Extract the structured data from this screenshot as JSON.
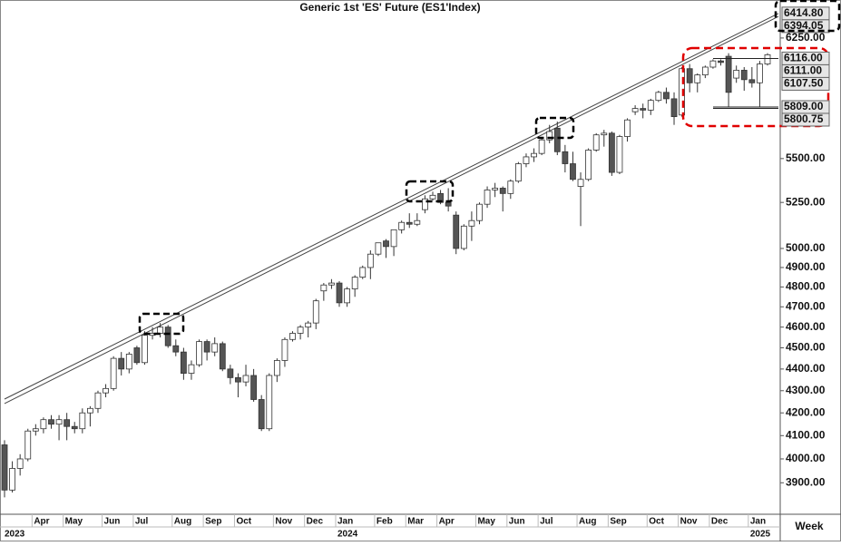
{
  "chart_data": {
    "type": "candlestick",
    "title": "Generic 1st 'ES' Future (ES1'Index)",
    "x_label": "Week",
    "log_scale": true,
    "ylim": [
      3772,
      6507
    ],
    "yticks": [
      {
        "value": 3900,
        "label": "3900.00"
      },
      {
        "value": 4000,
        "label": "4000.00"
      },
      {
        "value": 4100,
        "label": "4100.00"
      },
      {
        "value": 4200,
        "label": "4200.00"
      },
      {
        "value": 4300,
        "label": "4300.00"
      },
      {
        "value": 4400,
        "label": "4400.00"
      },
      {
        "value": 4500,
        "label": "4500.00"
      },
      {
        "value": 4600,
        "label": "4600.00"
      },
      {
        "value": 4700,
        "label": "4700.00"
      },
      {
        "value": 4800,
        "label": "4800.00"
      },
      {
        "value": 4900,
        "label": "4900.00"
      },
      {
        "value": 5000,
        "label": "5000.00"
      },
      {
        "value": 5250,
        "label": "5250.00"
      },
      {
        "value": 5500,
        "label": "5500.00"
      },
      {
        "value": 6250,
        "label": "6250.00"
      }
    ],
    "year_labels": [
      "2023",
      "2024",
      "2025"
    ],
    "categories": [
      null,
      null,
      null,
      null,
      "Apr",
      null,
      null,
      null,
      "May",
      null,
      null,
      null,
      null,
      "Jun",
      null,
      null,
      null,
      "Jul",
      null,
      null,
      null,
      null,
      "Aug",
      null,
      null,
      null,
      "Sep",
      null,
      null,
      null,
      "Oct",
      null,
      null,
      null,
      null,
      "Nov",
      null,
      null,
      null,
      "Dec",
      null,
      null,
      null,
      "Jan",
      null,
      null,
      null,
      null,
      "Feb",
      null,
      null,
      null,
      "Mar",
      null,
      null,
      null,
      "Apr",
      null,
      null,
      null,
      null,
      "May",
      null,
      null,
      null,
      "Jun",
      null,
      null,
      null,
      "Jul",
      null,
      null,
      null,
      null,
      "Aug",
      null,
      null,
      null,
      "Sep",
      null,
      null,
      null,
      null,
      "Oct",
      null,
      null,
      null,
      "Nov",
      null,
      null,
      null,
      "Dec",
      null,
      null,
      null,
      null,
      "Jan",
      null,
      null
    ],
    "open": [
      4060,
      3870,
      3960,
      4000,
      4120,
      4130,
      4170,
      4150,
      4170,
      4140,
      4130,
      4200,
      4220,
      4290,
      4310,
      4450,
      4400,
      4500,
      4430,
      4560,
      4570,
      4600,
      4510,
      4480,
      4380,
      4420,
      4530,
      4480,
      4520,
      4400,
      4360,
      4340,
      4370,
      4260,
      4130,
      4370,
      4440,
      4540,
      4570,
      4600,
      4620,
      4780,
      4810,
      4820,
      4720,
      4790,
      4850,
      4900,
      4970,
      5040,
      5010,
      5100,
      5140,
      5130,
      5210,
      5270,
      5300,
      5250,
      5180,
      5000,
      5120,
      5150,
      5240,
      5320,
      5330,
      5300,
      5370,
      5470,
      5510,
      5530,
      5610,
      5680,
      5540,
      5470,
      5340,
      5380,
      5550,
      5640,
      5650,
      5420,
      5630,
      5780,
      5800,
      5790,
      5850,
      5900,
      5860,
      5760,
      6050,
      5960,
      6010,
      6060,
      6100,
      6130,
      5990,
      6040,
      5980,
      5960,
      6080
    ],
    "high": [
      4080,
      3990,
      4020,
      4130,
      4150,
      4180,
      4190,
      4190,
      4200,
      4160,
      4220,
      4230,
      4300,
      4330,
      4460,
      4480,
      4480,
      4510,
      4580,
      4600,
      4620,
      4610,
      4540,
      4500,
      4440,
      4540,
      4540,
      4550,
      4530,
      4420,
      4380,
      4420,
      4400,
      4280,
      4380,
      4450,
      4550,
      4580,
      4610,
      4630,
      4740,
      4820,
      4840,
      4830,
      4800,
      4860,
      4910,
      4990,
      5030,
      5050,
      5100,
      5150,
      5190,
      5190,
      5290,
      5310,
      5320,
      5330,
      5200,
      5130,
      5200,
      5250,
      5340,
      5360,
      5340,
      5380,
      5480,
      5530,
      5560,
      5620,
      5700,
      5720,
      5580,
      5540,
      5420,
      5560,
      5650,
      5670,
      5660,
      5640,
      5740,
      5820,
      5830,
      5860,
      5910,
      5930,
      5900,
      6060,
      6080,
      6020,
      6070,
      6110,
      6110,
      6150,
      6070,
      6060,
      6060,
      6100,
      6150
    ],
    "low": [
      3840,
      3860,
      3930,
      3990,
      4100,
      4110,
      4130,
      4080,
      4080,
      4110,
      4110,
      4140,
      4200,
      4270,
      4300,
      4370,
      4380,
      4420,
      4420,
      4540,
      4550,
      4500,
      4460,
      4350,
      4350,
      4410,
      4440,
      4460,
      4390,
      4330,
      4270,
      4320,
      4250,
      4120,
      4120,
      4340,
      4410,
      4530,
      4540,
      4550,
      4590,
      4730,
      4790,
      4700,
      4700,
      4750,
      4840,
      4840,
      4960,
      4950,
      4960,
      5080,
      5110,
      5120,
      5190,
      5260,
      5240,
      5200,
      4970,
      4990,
      5040,
      5130,
      5220,
      5280,
      5200,
      5270,
      5360,
      5450,
      5480,
      5520,
      5590,
      5520,
      5420,
      5370,
      5120,
      5370,
      5540,
      5570,
      5400,
      5410,
      5600,
      5760,
      5740,
      5760,
      5840,
      5830,
      5700,
      5750,
      5900,
      5900,
      5990,
      6050,
      6070,
      5810,
      5960,
      5910,
      5930,
      5810,
      6070
    ],
    "close": [
      3870,
      3960,
      4000,
      4120,
      4130,
      4170,
      4150,
      4170,
      4140,
      4130,
      4200,
      4220,
      4290,
      4310,
      4450,
      4400,
      4470,
      4430,
      4560,
      4570,
      4600,
      4510,
      4480,
      4380,
      4420,
      4530,
      4480,
      4520,
      4400,
      4360,
      4340,
      4370,
      4260,
      4130,
      4370,
      4440,
      4540,
      4570,
      4600,
      4620,
      4730,
      4810,
      4820,
      4720,
      4790,
      4850,
      4900,
      4970,
      5030,
      5010,
      5100,
      5140,
      5130,
      5150,
      5270,
      5290,
      5250,
      5230,
      5000,
      5120,
      5150,
      5240,
      5320,
      5330,
      5300,
      5370,
      5470,
      5510,
      5530,
      5610,
      5660,
      5540,
      5470,
      5380,
      5380,
      5550,
      5640,
      5650,
      5420,
      5630,
      5730,
      5800,
      5790,
      5850,
      5900,
      5860,
      5750,
      6050,
      5960,
      6010,
      6060,
      6100,
      6090,
      5900,
      6040,
      5980,
      5960,
      6080,
      6140
    ],
    "up_color": "#ffffff",
    "down_color": "#555555",
    "title_color": "#3a5bd9",
    "trendlines": [
      {
        "start": 4262,
        "end": 6414.8
      },
      {
        "start": 4242,
        "end": 6394.05
      }
    ],
    "price_labels": [
      {
        "value": 6414.8,
        "label": "6414.80",
        "line": false
      },
      {
        "value": 6394.05,
        "label": "6394.05",
        "line": false
      },
      {
        "value": 6116,
        "label": "6116.00",
        "line": true
      },
      {
        "value": 6111,
        "label": "6111.00",
        "line": false
      },
      {
        "value": 6107.5,
        "label": "6107.50",
        "line": false
      },
      {
        "value": 5809,
        "label": "5809.00",
        "line": true
      },
      {
        "value": 5800.75,
        "label": "5800.75",
        "line": true
      }
    ]
  }
}
